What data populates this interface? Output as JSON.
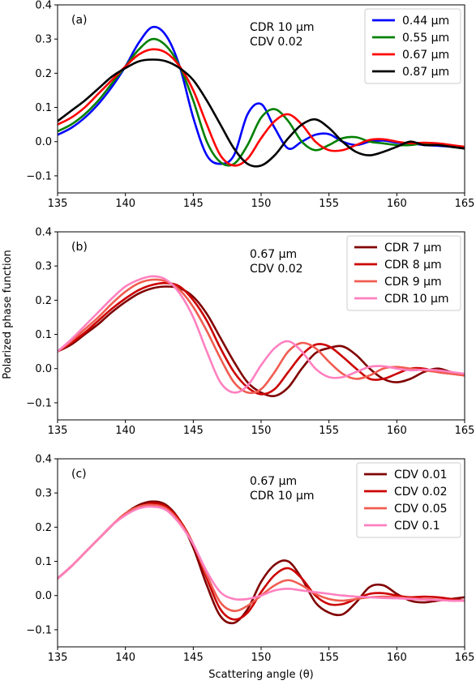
{
  "figure": {
    "ylabel": "Polarized phase function",
    "xlabel": "Scattering angle (θ)"
  },
  "chart_data": [
    {
      "type": "line",
      "panel_label": "(a)",
      "annotation": [
        "CDR 10 µm",
        "CDV 0.02"
      ],
      "xlim": [
        135,
        165
      ],
      "ylim": [
        -0.15,
        0.4
      ],
      "xticks": [
        135,
        140,
        145,
        150,
        155,
        160,
        165
      ],
      "yticks": [
        -0.1,
        0.0,
        0.1,
        0.2,
        0.3,
        0.4
      ],
      "legend_position": "top-right",
      "x": [
        135,
        136,
        137,
        138,
        139,
        140,
        141,
        142,
        143,
        144,
        145,
        146,
        147,
        148,
        149,
        150,
        151,
        152,
        153,
        154,
        155,
        156,
        157,
        158,
        159,
        160,
        161,
        162,
        163,
        164,
        165
      ],
      "series": [
        {
          "name": "0.44 µm",
          "color": "#0000ff",
          "values": [
            0.02,
            0.04,
            0.07,
            0.11,
            0.16,
            0.22,
            0.29,
            0.335,
            0.31,
            0.22,
            0.07,
            -0.04,
            -0.065,
            -0.04,
            0.08,
            0.11,
            0.04,
            -0.02,
            0.0,
            0.02,
            0.022,
            0.0,
            -0.01,
            0.0,
            0.003,
            -0.003,
            -0.005,
            -0.01,
            -0.012,
            -0.015,
            -0.02
          ]
        },
        {
          "name": "0.55 µm",
          "color": "#008000",
          "values": [
            0.03,
            0.05,
            0.08,
            0.12,
            0.17,
            0.22,
            0.27,
            0.3,
            0.28,
            0.22,
            0.12,
            0.0,
            -0.06,
            -0.065,
            -0.01,
            0.07,
            0.095,
            0.06,
            0.0,
            -0.025,
            -0.01,
            0.01,
            0.013,
            0.0,
            -0.005,
            -0.01,
            -0.01,
            -0.005,
            -0.008,
            -0.015,
            -0.02
          ]
        },
        {
          "name": "0.67 µm",
          "color": "#ff0000",
          "values": [
            0.05,
            0.07,
            0.1,
            0.14,
            0.18,
            0.22,
            0.255,
            0.27,
            0.26,
            0.22,
            0.15,
            0.05,
            -0.04,
            -0.07,
            -0.05,
            0.01,
            0.06,
            0.08,
            0.05,
            0.0,
            -0.025,
            -0.025,
            -0.01,
            0.005,
            0.007,
            0.0,
            -0.005,
            -0.003,
            -0.005,
            -0.01,
            -0.015
          ]
        },
        {
          "name": "0.87 µm",
          "color": "#000000",
          "values": [
            0.06,
            0.09,
            0.12,
            0.155,
            0.19,
            0.215,
            0.235,
            0.24,
            0.235,
            0.215,
            0.18,
            0.12,
            0.05,
            -0.02,
            -0.065,
            -0.07,
            -0.04,
            0.01,
            0.05,
            0.065,
            0.04,
            0.0,
            -0.03,
            -0.04,
            -0.03,
            -0.015,
            0.0,
            -0.01,
            -0.01,
            -0.015,
            -0.02
          ]
        }
      ]
    },
    {
      "type": "line",
      "panel_label": "(b)",
      "annotation": [
        "0.67 µm",
        "CDV 0.02"
      ],
      "xlim": [
        135,
        165
      ],
      "ylim": [
        -0.15,
        0.4
      ],
      "xticks": [
        135,
        140,
        145,
        150,
        155,
        160,
        165
      ],
      "yticks": [
        -0.1,
        0.0,
        0.1,
        0.2,
        0.3,
        0.4
      ],
      "legend_position": "top-right",
      "x": [
        135,
        136,
        137,
        138,
        139,
        140,
        141,
        142,
        143,
        144,
        145,
        146,
        147,
        148,
        149,
        150,
        151,
        152,
        153,
        154,
        155,
        156,
        157,
        158,
        159,
        160,
        161,
        162,
        163,
        164,
        165
      ],
      "series": [
        {
          "name": "CDR 7 µm",
          "color": "#800000",
          "values": [
            0.05,
            0.07,
            0.1,
            0.13,
            0.165,
            0.195,
            0.22,
            0.235,
            0.24,
            0.235,
            0.21,
            0.16,
            0.09,
            0.02,
            -0.04,
            -0.07,
            -0.08,
            -0.055,
            0.0,
            0.045,
            0.06,
            0.065,
            0.04,
            0.0,
            -0.03,
            -0.04,
            -0.03,
            -0.01,
            0.0,
            -0.01,
            -0.02
          ]
        },
        {
          "name": "CDR 8 µm",
          "color": "#cc0000",
          "values": [
            0.05,
            0.075,
            0.105,
            0.14,
            0.175,
            0.205,
            0.23,
            0.245,
            0.25,
            0.24,
            0.2,
            0.14,
            0.06,
            -0.01,
            -0.055,
            -0.075,
            -0.06,
            -0.01,
            0.04,
            0.07,
            0.065,
            0.035,
            0.0,
            -0.03,
            -0.03,
            -0.015,
            0.0,
            0.0,
            -0.01,
            -0.015,
            -0.02
          ]
        },
        {
          "name": "CDR 9 µm",
          "color": "#f05c50",
          "values": [
            0.05,
            0.08,
            0.115,
            0.15,
            0.19,
            0.225,
            0.25,
            0.26,
            0.255,
            0.23,
            0.18,
            0.11,
            0.03,
            -0.04,
            -0.07,
            -0.06,
            -0.01,
            0.05,
            0.075,
            0.06,
            0.02,
            -0.015,
            -0.03,
            -0.02,
            0.0,
            0.005,
            0.0,
            -0.005,
            -0.01,
            -0.015,
            -0.02
          ]
        },
        {
          "name": "CDR 10 µm",
          "color": "#ff80c0",
          "values": [
            0.05,
            0.085,
            0.125,
            0.165,
            0.205,
            0.24,
            0.26,
            0.27,
            0.26,
            0.22,
            0.15,
            0.05,
            -0.04,
            -0.07,
            -0.05,
            0.01,
            0.06,
            0.08,
            0.05,
            0.0,
            -0.025,
            -0.025,
            -0.01,
            0.005,
            0.007,
            0.0,
            -0.005,
            -0.003,
            -0.005,
            -0.01,
            -0.015
          ]
        }
      ]
    },
    {
      "type": "line",
      "panel_label": "(c)",
      "annotation": [
        "0.67 µm",
        "CDR 10 µm"
      ],
      "xlim": [
        135,
        165
      ],
      "ylim": [
        -0.15,
        0.4
      ],
      "xticks": [
        135,
        140,
        145,
        150,
        155,
        160,
        165
      ],
      "yticks": [
        -0.1,
        0.0,
        0.1,
        0.2,
        0.3,
        0.4
      ],
      "legend_position": "top-right",
      "x": [
        135,
        136,
        137,
        138,
        139,
        140,
        141,
        142,
        143,
        144,
        145,
        146,
        147,
        148,
        149,
        150,
        151,
        152,
        153,
        154,
        155,
        156,
        157,
        158,
        159,
        160,
        161,
        162,
        163,
        164,
        165
      ],
      "series": [
        {
          "name": "CDV 0.01",
          "color": "#800000",
          "values": [
            0.05,
            0.085,
            0.125,
            0.165,
            0.205,
            0.24,
            0.265,
            0.275,
            0.265,
            0.22,
            0.14,
            0.03,
            -0.06,
            -0.08,
            -0.04,
            0.04,
            0.09,
            0.1,
            0.05,
            -0.02,
            -0.05,
            -0.055,
            -0.02,
            0.025,
            0.03,
            0.005,
            -0.015,
            -0.02,
            -0.015,
            -0.01,
            -0.005
          ]
        },
        {
          "name": "CDV 0.02",
          "color": "#cc0000",
          "values": [
            0.05,
            0.085,
            0.125,
            0.165,
            0.205,
            0.24,
            0.26,
            0.27,
            0.26,
            0.22,
            0.15,
            0.05,
            -0.04,
            -0.07,
            -0.05,
            0.01,
            0.06,
            0.08,
            0.05,
            0.0,
            -0.025,
            -0.025,
            -0.01,
            0.005,
            0.007,
            0.0,
            -0.005,
            -0.003,
            -0.005,
            -0.01,
            -0.015
          ]
        },
        {
          "name": "CDV 0.05",
          "color": "#f05c50",
          "values": [
            0.05,
            0.085,
            0.125,
            0.165,
            0.205,
            0.24,
            0.26,
            0.265,
            0.255,
            0.215,
            0.15,
            0.06,
            -0.02,
            -0.045,
            -0.03,
            0.0,
            0.03,
            0.045,
            0.03,
            0.005,
            -0.01,
            -0.015,
            -0.01,
            -0.005,
            -0.003,
            -0.005,
            -0.008,
            -0.01,
            -0.012,
            -0.015,
            -0.015
          ]
        },
        {
          "name": "CDV 0.1",
          "color": "#ff80c0",
          "values": [
            0.05,
            0.085,
            0.125,
            0.165,
            0.205,
            0.235,
            0.255,
            0.26,
            0.25,
            0.21,
            0.15,
            0.07,
            0.01,
            -0.01,
            -0.01,
            0.0,
            0.015,
            0.02,
            0.015,
            0.01,
            0.005,
            0.0,
            -0.003,
            -0.005,
            -0.007,
            -0.008,
            -0.01,
            -0.012,
            -0.013,
            -0.015,
            -0.015
          ]
        }
      ]
    }
  ]
}
